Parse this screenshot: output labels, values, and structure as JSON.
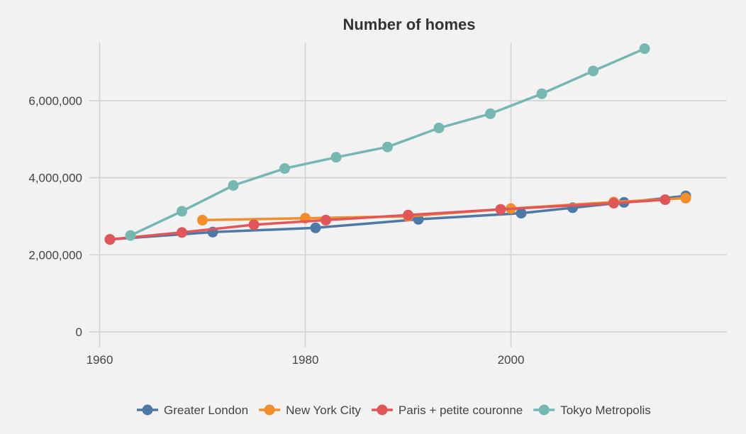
{
  "chart_data": {
    "type": "line",
    "title": "Number of homes",
    "xlabel": "",
    "ylabel": "",
    "xlim": [
      1959,
      2021
    ],
    "ylim": [
      0,
      7600000
    ],
    "x_ticks": [
      1960,
      1980,
      2000
    ],
    "x_tick_labels": [
      "1960",
      "1980",
      "2000"
    ],
    "y_ticks": [
      0,
      2000000,
      4000000,
      6000000
    ],
    "y_tick_labels": [
      "0",
      "2,000,000",
      "4,000,000",
      "6,000,000"
    ],
    "grid": true,
    "legend_position": "bottom",
    "series": [
      {
        "name": "Greater London",
        "color": "#4e79a7",
        "points": [
          [
            1961,
            2400000
          ],
          [
            1971,
            2590000
          ],
          [
            1981,
            2700000
          ],
          [
            1991,
            2920000
          ],
          [
            2001,
            3080000
          ],
          [
            2006,
            3220000
          ],
          [
            2011,
            3360000
          ],
          [
            2017,
            3530000
          ]
        ]
      },
      {
        "name": "New York City",
        "color": "#f28e2b",
        "points": [
          [
            1970,
            2900000
          ],
          [
            1980,
            2950000
          ],
          [
            1990,
            3000000
          ],
          [
            2000,
            3200000
          ],
          [
            2010,
            3370000
          ],
          [
            2017,
            3470000
          ]
        ]
      },
      {
        "name": "Paris + petite couronne",
        "color": "#e15759",
        "points": [
          [
            1961,
            2400000
          ],
          [
            1968,
            2580000
          ],
          [
            1975,
            2780000
          ],
          [
            1982,
            2900000
          ],
          [
            1990,
            3030000
          ],
          [
            1999,
            3180000
          ],
          [
            2010,
            3340000
          ],
          [
            2015,
            3430000
          ]
        ]
      },
      {
        "name": "Tokyo Metropolis",
        "color": "#76b7b2",
        "points": [
          [
            1963,
            2500000
          ],
          [
            1968,
            3130000
          ],
          [
            1973,
            3800000
          ],
          [
            1978,
            4240000
          ],
          [
            1983,
            4530000
          ],
          [
            1988,
            4800000
          ],
          [
            1993,
            5290000
          ],
          [
            1998,
            5660000
          ],
          [
            2003,
            6180000
          ],
          [
            2008,
            6770000
          ],
          [
            2013,
            7350000
          ]
        ]
      }
    ]
  }
}
